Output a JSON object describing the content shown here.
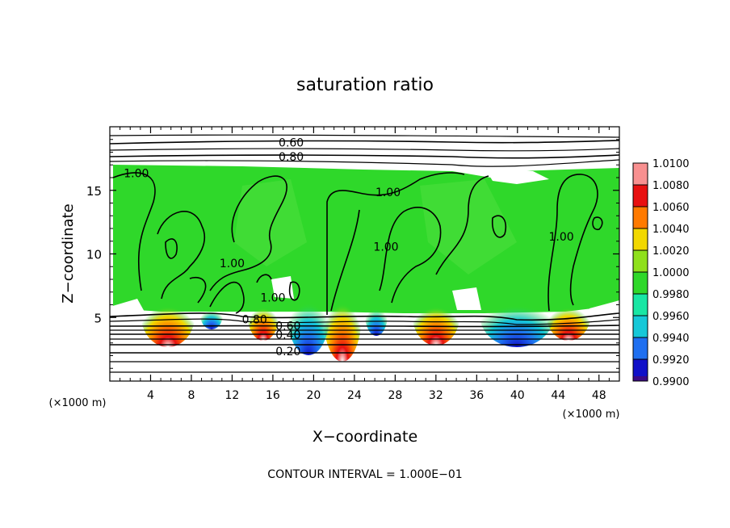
{
  "chart_data": {
    "type": "heatmap",
    "title": "saturation ratio",
    "xlabel": "X−coordinate",
    "ylabel": "Z−coordinate",
    "x_unit_left": "(×1000 m)",
    "x_unit_right": "(×1000 m)",
    "xlim": [
      0,
      50
    ],
    "ylim": [
      0,
      20
    ],
    "x_ticks": [
      4,
      8,
      12,
      16,
      20,
      24,
      28,
      32,
      36,
      40,
      44,
      48
    ],
    "y_ticks": [
      5,
      10,
      15
    ],
    "footer": "CONTOUR INTERVAL = 1.000E−01",
    "colorbar": {
      "levels": [
        0.99,
        0.992,
        0.994,
        0.996,
        0.998,
        1.0,
        1.002,
        1.004,
        1.006,
        1.008,
        1.01
      ],
      "labels": [
        "0.9900",
        "0.9920",
        "0.9940",
        "0.9960",
        "0.9980",
        "1.0000",
        "1.0020",
        "1.0040",
        "1.0060",
        "1.0080",
        "1.0100"
      ],
      "colors": [
        "#3b0a86",
        "#1010c8",
        "#1f6ff0",
        "#16c8d8",
        "#19e6a4",
        "#2fd82a",
        "#8fe01c",
        "#f2d800",
        "#ff7a00",
        "#e81010",
        "#f89090"
      ]
    },
    "contour_labels": [
      {
        "text": "0.60",
        "x": 17.8,
        "z": 18.7
      },
      {
        "text": "0.80",
        "x": 17.8,
        "z": 17.6
      },
      {
        "text": "1.00",
        "x": 2.6,
        "z": 16.3
      },
      {
        "text": "1.00",
        "x": 27.3,
        "z": 14.8
      },
      {
        "text": "1.00",
        "x": 12.0,
        "z": 9.2
      },
      {
        "text": "1.00",
        "x": 16.0,
        "z": 6.5
      },
      {
        "text": "1.00",
        "x": 27.1,
        "z": 10.5
      },
      {
        "text": "1.00",
        "x": 44.3,
        "z": 11.3
      },
      {
        "text": "0.80",
        "x": 14.2,
        "z": 4.8
      },
      {
        "text": "0.60",
        "x": 17.5,
        "z": 4.3
      },
      {
        "text": "0.40",
        "x": 17.5,
        "z": 3.6
      },
      {
        "text": "0.20",
        "x": 17.5,
        "z": 2.3
      }
    ]
  }
}
